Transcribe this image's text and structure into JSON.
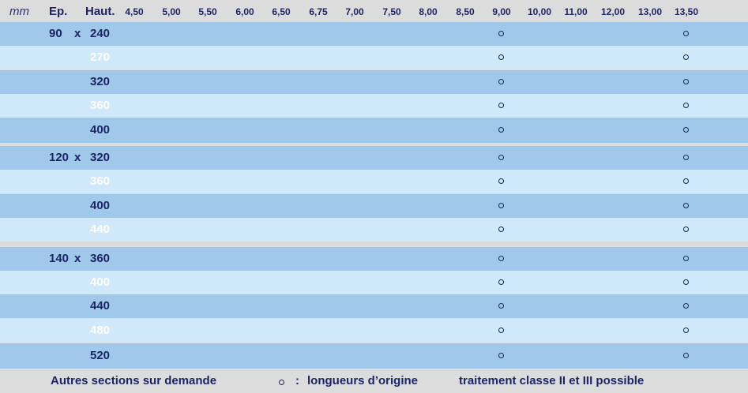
{
  "header": {
    "unit": "mm",
    "ep_label": "Ep.",
    "haut_label": "Haut.",
    "lengths": [
      "4,50",
      "5,00",
      "5,50",
      "6,00",
      "6,50",
      "6,75",
      "7,00",
      "7,50",
      "8,00",
      "8,50",
      "9,00",
      "10,00",
      "11,00",
      "12,00",
      "13,00",
      "13,50"
    ]
  },
  "marker_columns": [
    "9,00",
    "13,50"
  ],
  "groups": [
    {
      "ep": "90",
      "x": "x",
      "heights": [
        "240",
        "270",
        "320",
        "360",
        "400"
      ]
    },
    {
      "ep": "120",
      "x": "x",
      "heights": [
        "320",
        "360",
        "400",
        "440"
      ]
    },
    {
      "ep": "140",
      "x": "x",
      "heights": [
        "360",
        "400",
        "440",
        "480",
        "520"
      ]
    }
  ],
  "footer": {
    "left": "Autres sections sur demande",
    "legend_colon": ":",
    "legend_text": "longueurs d’origine",
    "treatment": "traitement classe II et III possible"
  },
  "colors": {
    "row_dark": "#a0c8ea",
    "row_light": "#cfe8fa",
    "text": "#1b2566",
    "header_bg": "#dcdcdc"
  }
}
